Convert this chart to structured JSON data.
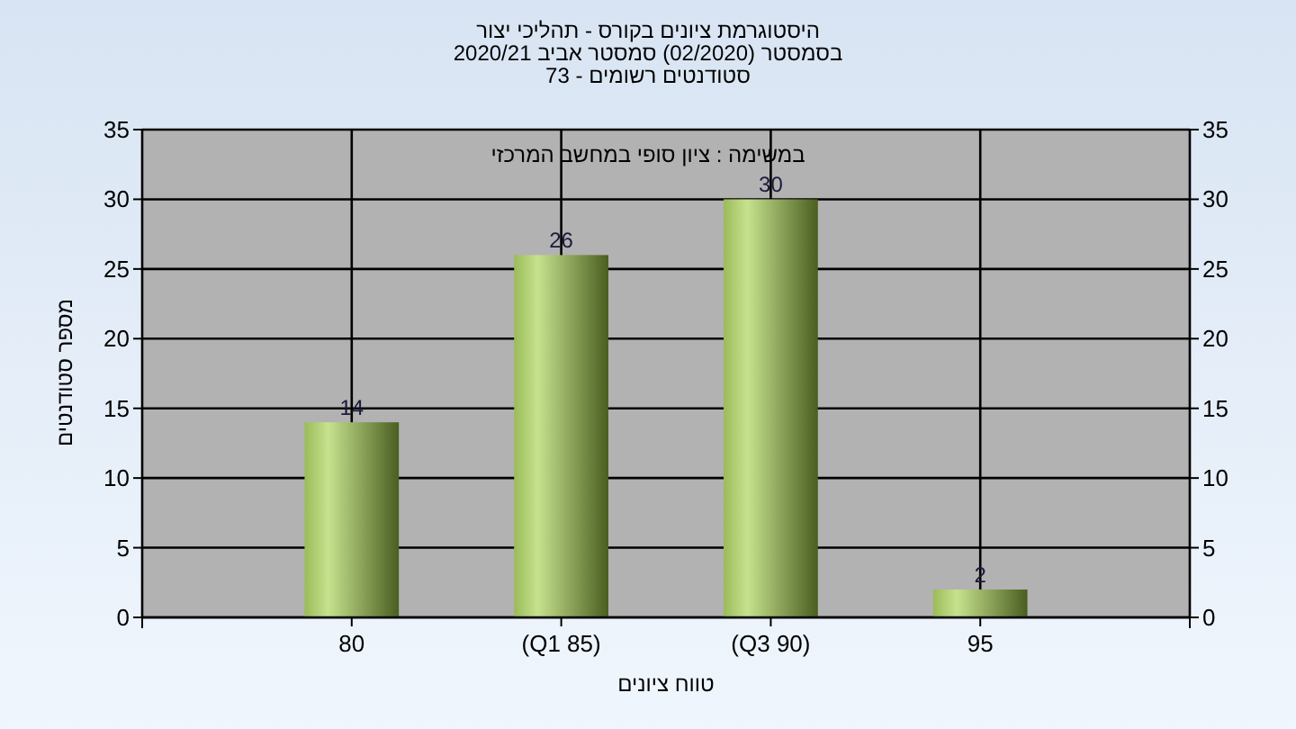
{
  "chart_data": {
    "type": "bar",
    "title": "היסטוגרמת ציונים בקורס - תהליכי יצור",
    "subtitle": "בסמסטר (02/2020) סמסטר אביב 2020/21",
    "annotations": [
      "סטודנטים רשומים - 73",
      "במשימה : ציון סופי במחשב המרכזי"
    ],
    "xlabel": "טווח ציונים",
    "ylabel": "מספר סטודנטים",
    "categories": [
      "80",
      "(Q1 85)",
      "(Q3 90)",
      "95"
    ],
    "values": [
      14,
      26,
      30,
      2
    ],
    "color": "#9bbb59",
    "ylim": [
      0,
      35
    ],
    "yticks": [
      0,
      5,
      10,
      15,
      20,
      25,
      30,
      35
    ],
    "y2lim": [
      0,
      35
    ],
    "y2ticks": [
      0,
      5,
      10,
      15,
      20,
      25,
      30,
      35
    ],
    "grid": true,
    "data_labels": true
  }
}
